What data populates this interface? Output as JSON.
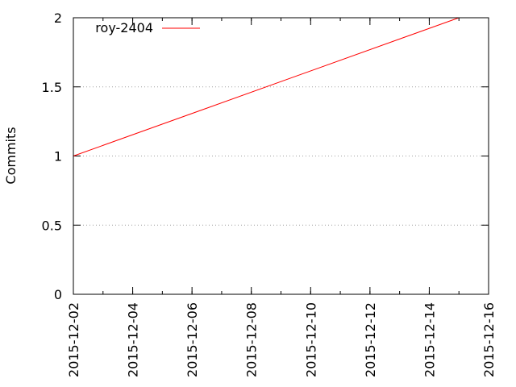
{
  "chart_data": {
    "type": "line",
    "title": "",
    "xlabel": "",
    "ylabel": "Commits",
    "x_type": "date",
    "xlim": [
      "2015-12-02",
      "2015-12-16"
    ],
    "ylim": [
      0,
      2
    ],
    "x_ticks": [
      "2015-12-02",
      "2015-12-04",
      "2015-12-06",
      "2015-12-08",
      "2015-12-10",
      "2015-12-12",
      "2015-12-14",
      "2015-12-16"
    ],
    "y_ticks": [
      0,
      0.5,
      1,
      1.5,
      2
    ],
    "grid": "horizontal-dotted",
    "legend": "top-left",
    "series": [
      {
        "name": "roy-2404",
        "color": "#ff0000",
        "points": [
          {
            "x": "2015-12-02",
            "y": 1
          },
          {
            "x": "2015-12-15",
            "y": 2
          }
        ]
      }
    ]
  }
}
